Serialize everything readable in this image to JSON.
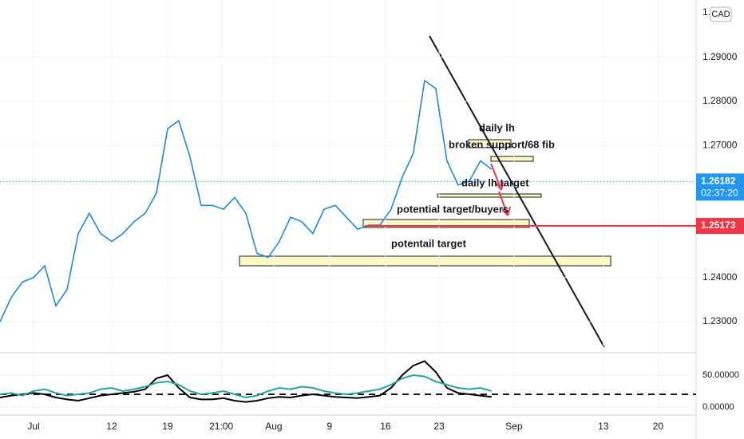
{
  "chart_data": [
    {
      "type": "line",
      "x": [
        -3,
        -2,
        -1,
        0,
        1,
        2,
        3,
        4,
        5,
        6,
        7,
        8,
        9,
        10,
        11,
        12,
        13,
        14,
        15,
        16,
        17,
        18,
        19,
        20,
        21,
        22,
        23,
        24,
        25,
        26,
        27,
        28,
        29,
        30,
        31,
        32,
        33,
        34,
        35,
        36,
        37,
        38,
        39,
        40,
        41
      ],
      "series": [
        {
          "color": "#1e88e5",
          "values": [
            1.23,
            1.2355,
            1.239,
            1.24,
            1.2427,
            1.2336,
            1.2373,
            1.25,
            1.2546,
            1.25,
            1.2482,
            1.25,
            1.2527,
            1.2546,
            1.2592,
            1.2738,
            1.2756,
            1.2674,
            1.2564,
            1.2564,
            1.2555,
            1.2582,
            1.2546,
            1.2455,
            1.2446,
            1.2482,
            1.2537,
            1.2527,
            1.25,
            1.2555,
            1.2564,
            1.2537,
            1.251,
            1.2519,
            1.2519,
            1.2555,
            1.2628,
            1.2683,
            1.2847,
            1.2829,
            1.2665,
            1.261,
            1.2619,
            1.2665,
            1.2646
          ]
        }
      ],
      "xlim": [
        -3,
        59.3
      ],
      "xticks": [
        {
          "value": 0,
          "label": "Jul"
        },
        {
          "value": 7,
          "label": "12"
        },
        {
          "value": 12,
          "label": "19"
        },
        {
          "value": 16.8,
          "label": "21:00"
        },
        {
          "value": 21.5,
          "label": "Aug"
        },
        {
          "value": 26.5,
          "label": "9"
        },
        {
          "value": 31.5,
          "label": "16"
        },
        {
          "value": 36.3,
          "label": "23"
        },
        {
          "value": 43,
          "label": "Sep"
        },
        {
          "value": 51,
          "label": "13"
        },
        {
          "value": 55.9,
          "label": "20"
        }
      ],
      "ylim": [
        1.2233,
        1.303
      ],
      "yticks": [
        {
          "value": 1.23,
          "label": "1.23000"
        },
        {
          "value": 1.24,
          "label": "1.24000"
        },
        {
          "value": 1.27,
          "label": "1.27000"
        },
        {
          "value": 1.28,
          "label": "1.28000"
        },
        {
          "value": 1.29,
          "label": "1.29000"
        }
      ],
      "top_label": "1.",
      "currency": "CAD",
      "last_price": 1.26182,
      "countdown": "02:37:20",
      "alert_price": 1.25173,
      "annotations": [
        "daily lh",
        "broken support/68 fib",
        "daily lh target",
        "potential target/buyers",
        "potentail target"
      ]
    },
    {
      "type": "line",
      "x": [
        -3,
        -2,
        -1,
        0,
        1,
        2,
        3,
        4,
        5,
        6,
        7,
        8,
        9,
        10,
        11,
        12,
        13,
        14,
        15,
        16,
        17,
        18,
        19,
        20,
        21,
        22,
        23,
        24,
        25,
        26,
        27,
        28,
        29,
        30,
        31,
        32,
        33,
        34,
        35,
        36,
        37,
        38,
        39,
        40,
        41
      ],
      "series": [
        {
          "color": "#000000",
          "values": [
            15,
            18,
            20,
            22,
            20,
            15,
            12,
            10,
            14,
            18,
            20,
            22,
            24,
            28,
            45,
            50,
            30,
            15,
            12,
            12,
            14,
            10,
            8,
            10,
            14,
            16,
            15,
            18,
            20,
            18,
            16,
            15,
            14,
            16,
            18,
            30,
            50,
            65,
            72,
            55,
            30,
            22,
            20,
            18,
            16
          ]
        },
        {
          "color": "#26a69a",
          "values": [
            20,
            22,
            18,
            25,
            28,
            22,
            18,
            20,
            22,
            28,
            30,
            25,
            28,
            32,
            38,
            40,
            35,
            25,
            20,
            22,
            25,
            20,
            15,
            18,
            25,
            30,
            28,
            32,
            30,
            25,
            22,
            20,
            22,
            25,
            28,
            35,
            45,
            50,
            48,
            40,
            35,
            30,
            28,
            30,
            25
          ]
        }
      ],
      "xlim": [
        -3,
        59.3
      ],
      "ylim": [
        -12.5,
        83.75
      ],
      "yticks": [
        {
          "value": 50,
          "label": "50.00000"
        },
        {
          "value": 0,
          "label": "0.00000"
        }
      ],
      "level": 20
    }
  ]
}
